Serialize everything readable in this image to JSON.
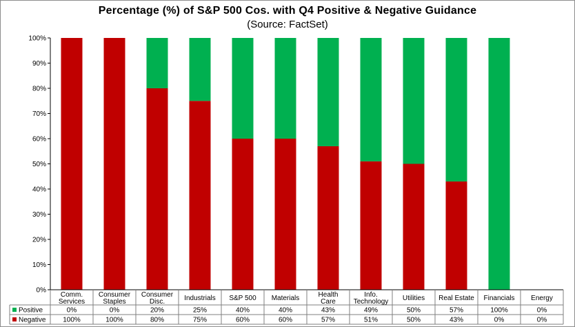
{
  "chart_data": {
    "type": "bar",
    "stacked": true,
    "percent_stacked": true,
    "title": "Percentage (%) of S&P 500 Cos. with Q4 Positive & Negative Guidance",
    "subtitle": "(Source: FactSet)",
    "categories": [
      [
        "Comm.",
        "Services"
      ],
      [
        "Consumer",
        "Staples"
      ],
      [
        "Consumer",
        "Disc."
      ],
      [
        "Industrials"
      ],
      [
        "S&P 500"
      ],
      [
        "Materials"
      ],
      [
        "Health",
        "Care"
      ],
      [
        "Info.",
        "Technology"
      ],
      [
        "Utilities"
      ],
      [
        "Real Estate"
      ],
      [
        "Financials"
      ],
      [
        "Energy"
      ]
    ],
    "series": [
      {
        "name": "Positive",
        "color": "#00b050",
        "values": [
          0,
          0,
          20,
          25,
          40,
          40,
          43,
          49,
          50,
          57,
          100,
          0
        ],
        "labels": [
          "0%",
          "0%",
          "20%",
          "25%",
          "40%",
          "40%",
          "43%",
          "49%",
          "50%",
          "57%",
          "100%",
          "0%"
        ]
      },
      {
        "name": "Negative",
        "color": "#c00000",
        "values": [
          100,
          100,
          80,
          75,
          60,
          60,
          57,
          51,
          50,
          43,
          0,
          0
        ],
        "labels": [
          "100%",
          "100%",
          "80%",
          "75%",
          "60%",
          "60%",
          "57%",
          "51%",
          "50%",
          "43%",
          "0%",
          "0%"
        ]
      }
    ],
    "yticks": [
      "0%",
      "10%",
      "20%",
      "30%",
      "40%",
      "50%",
      "60%",
      "70%",
      "80%",
      "90%",
      "100%"
    ],
    "ylim": [
      0,
      100
    ],
    "grid": false,
    "legend": "data-table-left"
  }
}
